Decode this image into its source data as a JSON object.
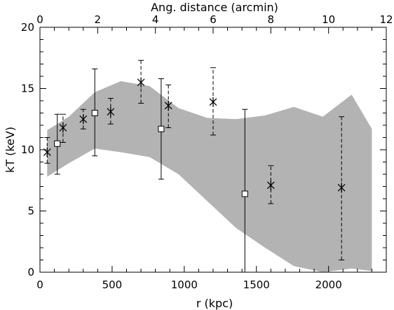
{
  "chart_data": {
    "type": "scatter",
    "title": "",
    "xlabel": "r (kpc)",
    "ylabel": "kT (keV)",
    "top_xlabel": "Ang. distance (arcmin)",
    "xlim": [
      0,
      2400
    ],
    "ylim": [
      0,
      20
    ],
    "top_xlim": [
      0,
      12
    ],
    "x_ticks": [
      0,
      500,
      1000,
      1500,
      2000
    ],
    "x_tick_labels": [
      "0",
      "500",
      "1000",
      "1500",
      "2000"
    ],
    "y_ticks": [
      0,
      5,
      10,
      15,
      20
    ],
    "y_tick_labels": [
      "0",
      "5",
      "10",
      "15",
      "20"
    ],
    "top_ticks": [
      0,
      2,
      4,
      6,
      8,
      10,
      12
    ],
    "top_tick_labels": [
      "0",
      "2",
      "4",
      "6",
      "8",
      "10",
      "12"
    ],
    "grid": false,
    "colors": {
      "band": "#b3b3b3",
      "marker": "#000000"
    },
    "band": {
      "x": [
        50,
        200,
        380,
        560,
        760,
        960,
        1160,
        1360,
        1560,
        1760,
        1960,
        2160,
        2300
      ],
      "upper": [
        11.6,
        12.7,
        14.7,
        15.6,
        15.2,
        13.4,
        12.6,
        12.5,
        12.8,
        13.5,
        12.7,
        14.5,
        11.7
      ],
      "lower": [
        7.8,
        8.9,
        10.1,
        9.8,
        9.4,
        8.0,
        5.8,
        3.6,
        2.0,
        0.5,
        0.0,
        0.3,
        0.1
      ]
    },
    "series": [
      {
        "marker": "square",
        "line_style": "solid",
        "points": [
          {
            "x": 120,
            "y": 10.5,
            "low": 8.0,
            "high": 12.9
          },
          {
            "x": 380,
            "y": 13.0,
            "low": 9.5,
            "high": 16.6
          },
          {
            "x": 840,
            "y": 11.7,
            "low": 7.6,
            "high": 15.8
          },
          {
            "x": 1420,
            "y": 6.4,
            "low": 0.0,
            "high": 13.3
          }
        ]
      },
      {
        "marker": "asterisk",
        "line_style": "dashed",
        "points": [
          {
            "x": 50,
            "y": 9.8,
            "low": 8.9,
            "high": 11.0
          },
          {
            "x": 160,
            "y": 11.8,
            "low": 10.6,
            "high": 12.9
          },
          {
            "x": 300,
            "y": 12.5,
            "low": 11.7,
            "high": 13.3
          },
          {
            "x": 490,
            "y": 13.1,
            "low": 12.1,
            "high": 14.2
          },
          {
            "x": 700,
            "y": 15.5,
            "low": 13.8,
            "high": 17.3
          },
          {
            "x": 890,
            "y": 13.6,
            "low": 11.8,
            "high": 15.3
          },
          {
            "x": 1200,
            "y": 13.9,
            "low": 11.2,
            "high": 16.7
          },
          {
            "x": 1600,
            "y": 7.1,
            "low": 5.6,
            "high": 8.7
          },
          {
            "x": 2090,
            "y": 6.9,
            "low": 1.0,
            "high": 12.7
          }
        ]
      }
    ]
  }
}
